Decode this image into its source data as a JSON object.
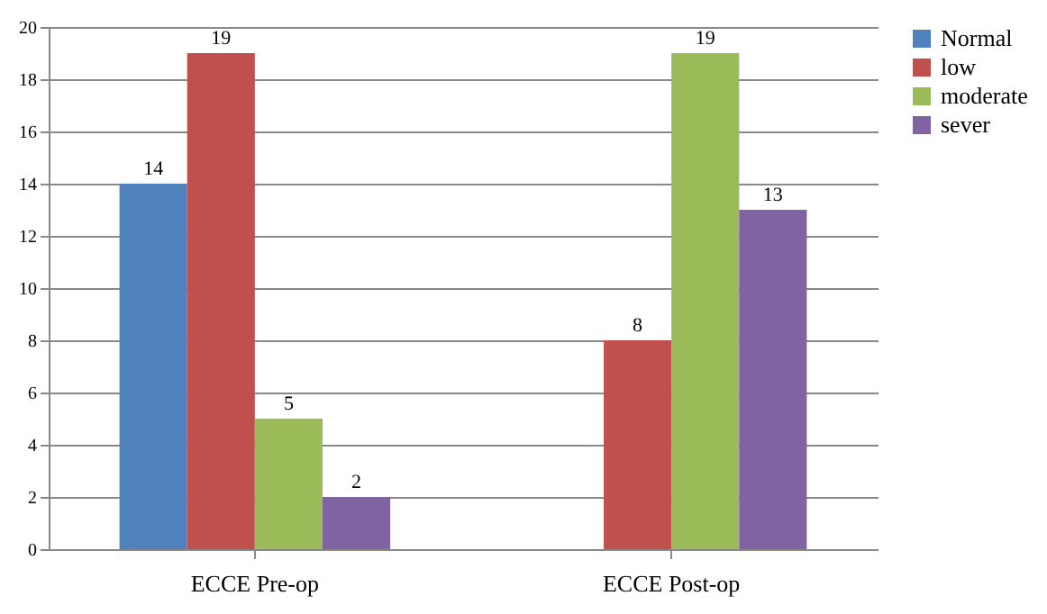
{
  "chart_data": {
    "type": "bar",
    "categories": [
      "ECCE Pre-op",
      "ECCE Post-op"
    ],
    "series": [
      {
        "name": "Normal",
        "color": "#4f81bd",
        "values": [
          14,
          null
        ]
      },
      {
        "name": "low",
        "color": "#c0504d",
        "values": [
          19,
          8
        ]
      },
      {
        "name": "moderate",
        "color": "#9bbb59",
        "values": [
          5,
          19
        ]
      },
      {
        "name": "sever",
        "color": "#8064a2",
        "values": [
          2,
          13
        ]
      }
    ],
    "ylim": [
      0,
      20
    ],
    "yticks": [
      0,
      2,
      4,
      6,
      8,
      10,
      12,
      14,
      16,
      18,
      20
    ],
    "grid": "y",
    "legend": "right",
    "data_labels": true
  }
}
